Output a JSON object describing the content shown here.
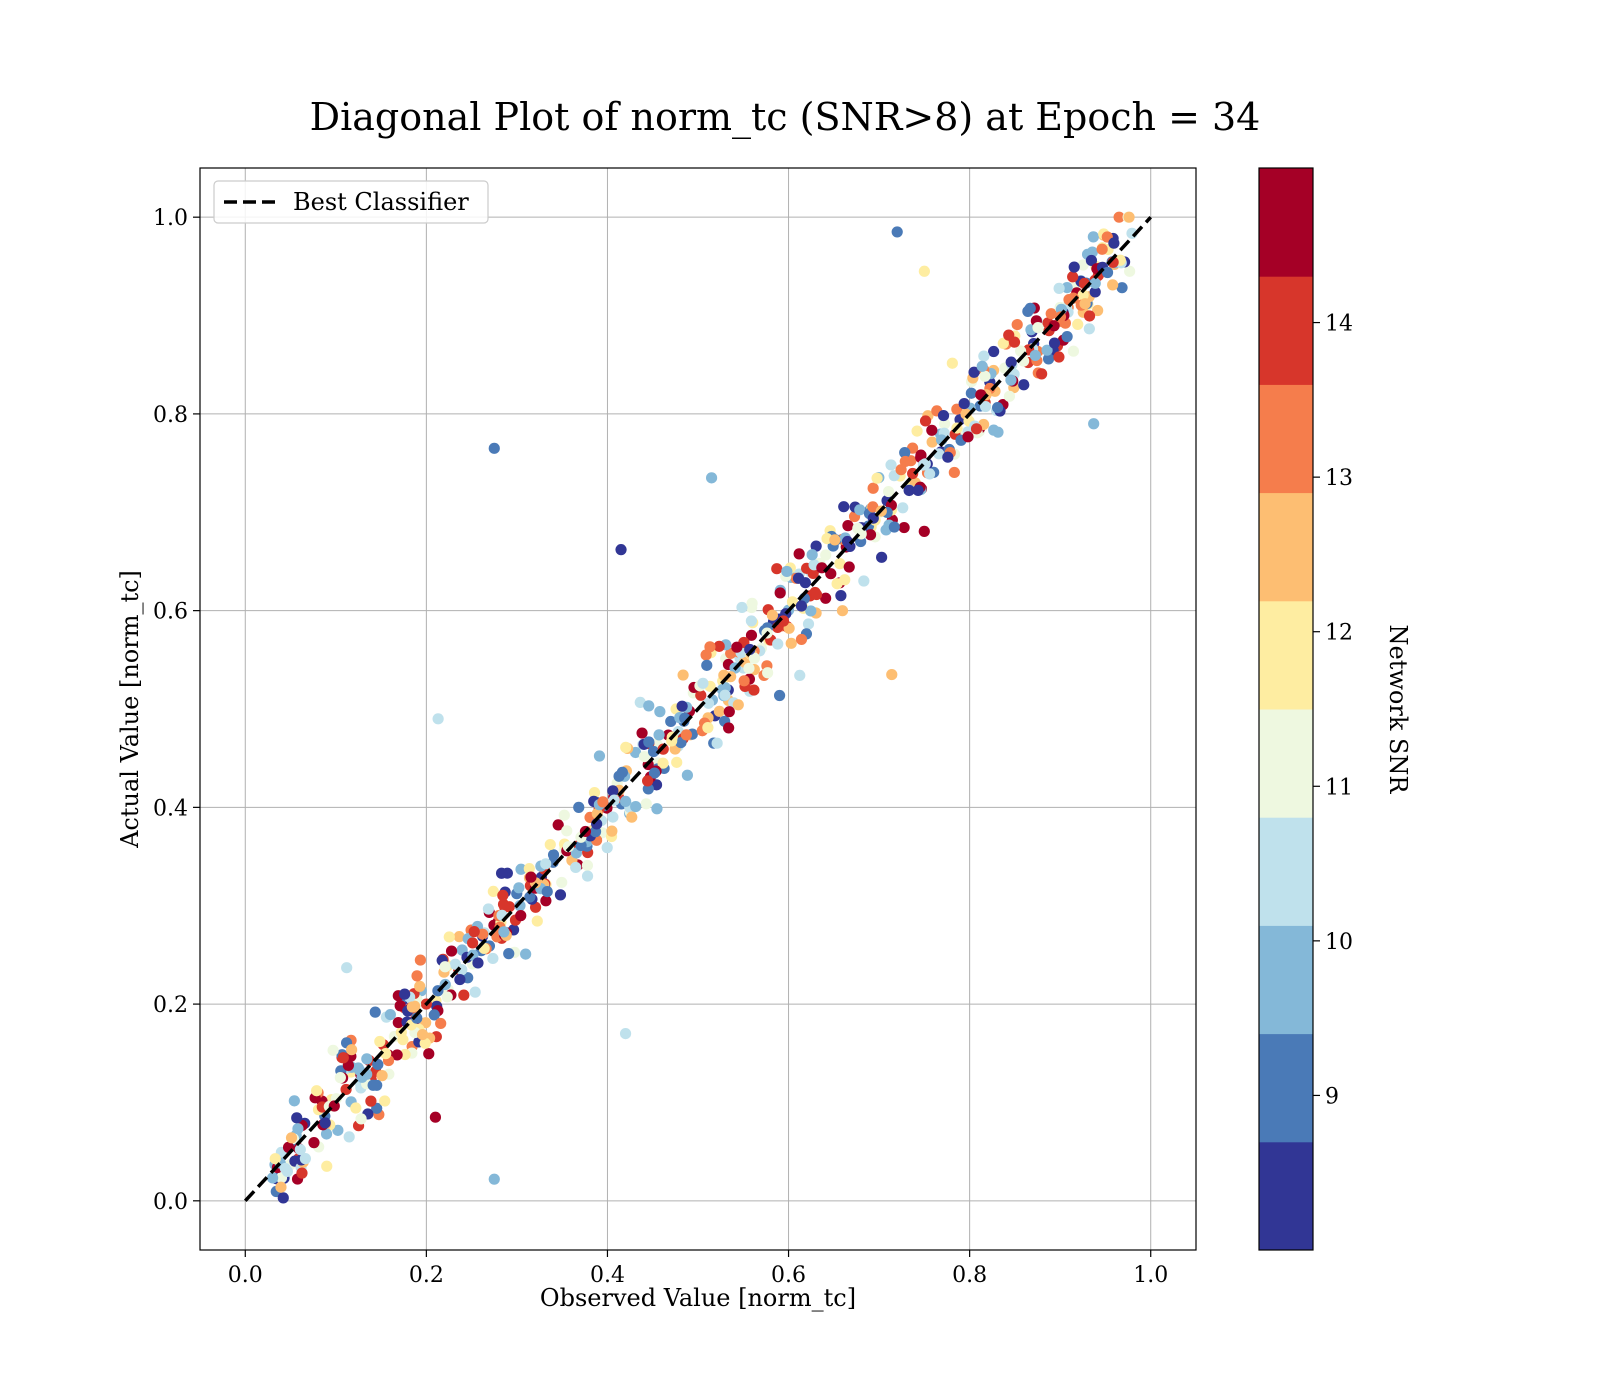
{
  "chart_data": {
    "type": "scatter",
    "title": "Diagonal Plot of norm_tc (SNR>8) at Epoch = 34",
    "xlabel": "Observed Value [norm_tc]",
    "ylabel": "Actual Value [norm_tc]",
    "xlim": [
      -0.05,
      1.05
    ],
    "ylim": [
      -0.05,
      1.05
    ],
    "xticks": [
      "0.0",
      "0.2",
      "0.4",
      "0.6",
      "0.8",
      "1.0"
    ],
    "yticks": [
      "0.0",
      "0.2",
      "0.4",
      "0.6",
      "0.8",
      "1.0"
    ],
    "grid": true,
    "legend": {
      "position": "top-left",
      "entries": [
        {
          "label": "Best Classifier",
          "style": "black dashed line"
        }
      ]
    },
    "reference_line": {
      "name": "Best Classifier",
      "x": [
        0,
        1
      ],
      "y": [
        0,
        1
      ],
      "color": "#000000",
      "style": "dashed"
    },
    "colorbar": {
      "label": "Network SNR",
      "min": 8,
      "max": 15,
      "ticks": [
        "9",
        "10",
        "11",
        "12",
        "13",
        "14"
      ],
      "colors": [
        "#313695",
        "#4575b4",
        "#74add1",
        "#abd9e9",
        "#e0f3f8",
        "#ffffbf",
        "#fee090",
        "#fdae61",
        "#f46d43",
        "#d73027",
        "#a50026"
      ],
      "bins": [
        "#313695",
        "#4a7ab7",
        "#84b8d8",
        "#bfe1ec",
        "#eef8e0",
        "#feeda1",
        "#fdbe72",
        "#f57d4c",
        "#d7362b",
        "#a50026"
      ]
    },
    "points_note": "",
    "outliers": [
      {
        "x": 0.275,
        "y": 0.765,
        "snr": 9.3
      },
      {
        "x": 0.72,
        "y": 0.985,
        "snr": 9.2
      },
      {
        "x": 0.415,
        "y": 0.662,
        "snr": 8.4
      },
      {
        "x": 0.42,
        "y": 0.17,
        "snr": 10.5
      },
      {
        "x": 0.275,
        "y": 0.022,
        "snr": 9.6
      },
      {
        "x": 0.213,
        "y": 0.49,
        "snr": 10.6
      },
      {
        "x": 0.515,
        "y": 0.735,
        "snr": 9.8
      },
      {
        "x": 0.75,
        "y": 0.945,
        "snr": 12.0
      },
      {
        "x": 0.112,
        "y": 0.237,
        "snr": 10.6
      },
      {
        "x": 0.714,
        "y": 0.535,
        "snr": 12.6
      },
      {
        "x": 0.21,
        "y": 0.085,
        "snr": 14.4
      },
      {
        "x": 0.937,
        "y": 0.79,
        "snr": 9.7
      }
    ]
  }
}
